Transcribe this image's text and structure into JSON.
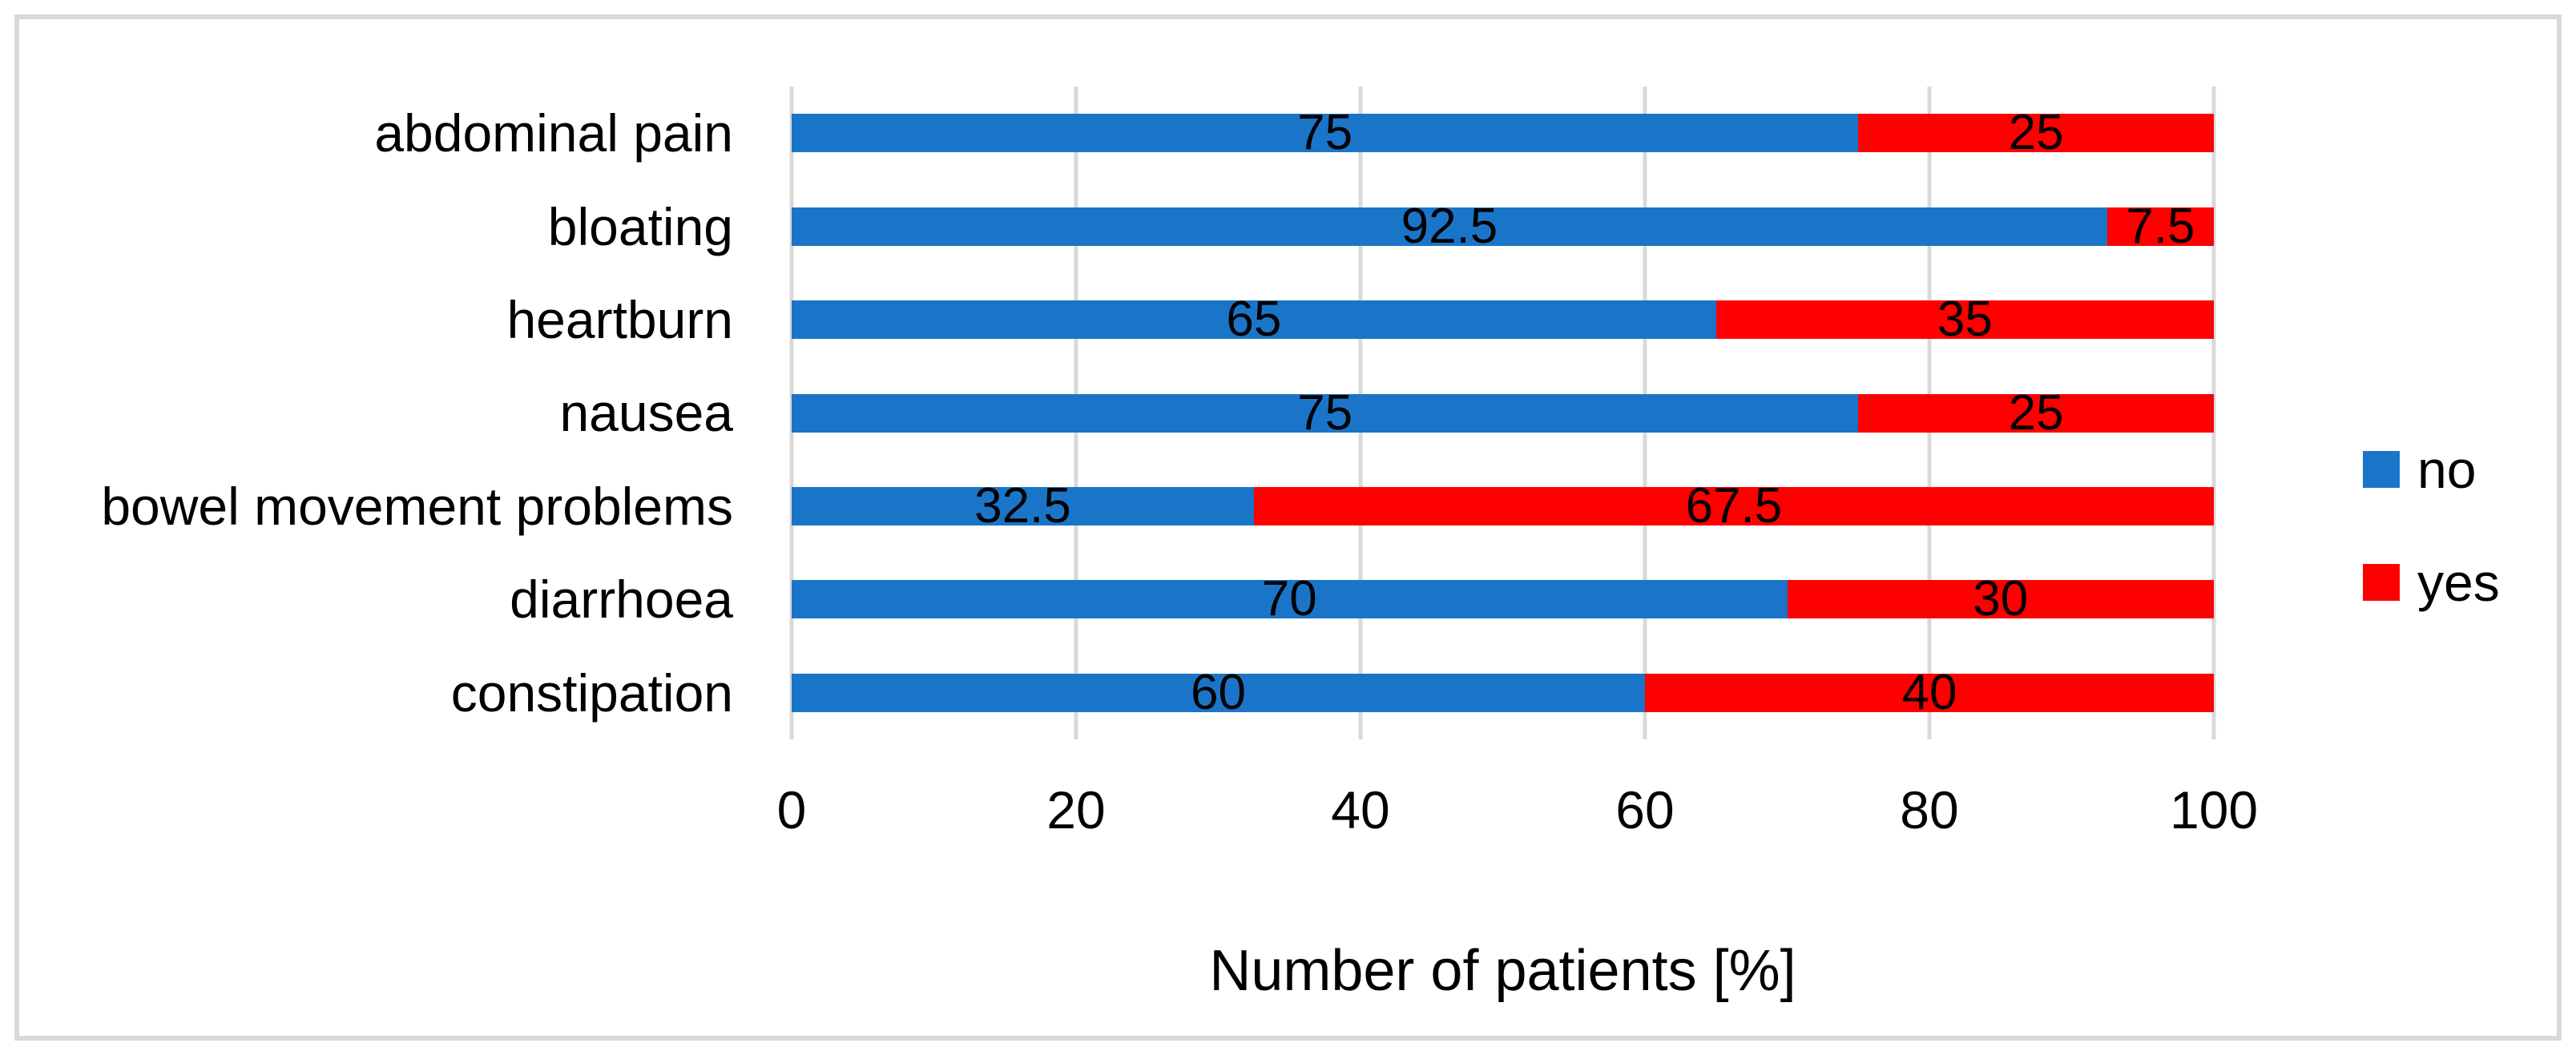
{
  "chart_data": {
    "type": "bar",
    "orientation": "horizontal",
    "stacked": true,
    "categories": [
      "abdominal pain",
      "bloating",
      "heartburn",
      "nausea",
      "bowel movement problems",
      "diarrhoea",
      "constipation"
    ],
    "series": [
      {
        "name": "no",
        "color": "#1A75C8",
        "values": [
          75,
          92.5,
          65,
          75,
          32.5,
          70,
          60
        ]
      },
      {
        "name": "yes",
        "color": "#FF0000",
        "values": [
          25,
          7.5,
          35,
          25,
          67.5,
          30,
          40
        ]
      }
    ],
    "xlabel": "Number of patients [%]",
    "xlim": [
      0,
      100
    ],
    "x_ticks": [
      0,
      20,
      40,
      60,
      80,
      100
    ],
    "grid": true,
    "data_labels": true,
    "legend_position": "middle-right"
  },
  "colors": {
    "background": "#FFFFFF",
    "frame_border": "#D9D9D9",
    "gridline": "#D9D9D9",
    "text": "#000000"
  }
}
